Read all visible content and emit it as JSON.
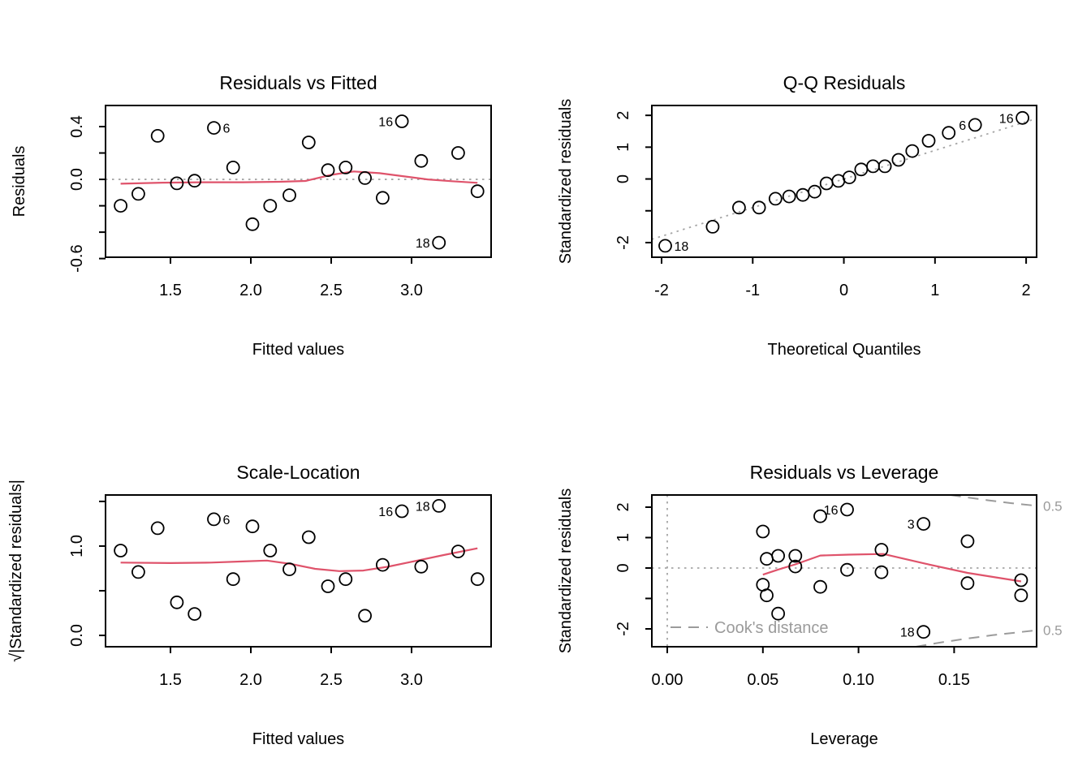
{
  "style": {
    "red_line": "#DF536B",
    "gray_line": "#a6a6a6",
    "gray_dashed": "#9b9b9b",
    "gray_text": "#9b9b9b",
    "point_color": "#000000",
    "background": "#ffffff"
  },
  "observations": {
    "fitted": [
      1.19,
      1.3,
      1.42,
      1.54,
      1.65,
      1.77,
      1.89,
      2.01,
      2.12,
      2.24,
      2.36,
      2.48,
      2.59,
      2.71,
      2.82,
      2.94,
      3.06,
      3.17,
      3.29,
      3.41
    ],
    "residuals": [
      -0.2,
      -0.11,
      0.33,
      -0.03,
      -0.01,
      0.39,
      0.09,
      -0.34,
      -0.2,
      -0.12,
      0.28,
      0.07,
      0.09,
      0.01,
      -0.14,
      0.44,
      0.14,
      -0.48,
      0.2,
      -0.09
    ],
    "std_residuals": [
      -0.9,
      -0.5,
      1.45,
      -0.14,
      -0.06,
      1.7,
      0.4,
      -1.5,
      -0.9,
      -0.55,
      1.2,
      0.3,
      0.4,
      0.05,
      -0.62,
      1.92,
      0.6,
      -2.1,
      0.88,
      -0.4
    ],
    "leverage": [
      0.185,
      0.157,
      0.134,
      0.112,
      0.094,
      0.08,
      0.067,
      0.058,
      0.052,
      0.05,
      0.05,
      0.052,
      0.058,
      0.067,
      0.08,
      0.094,
      0.112,
      0.134,
      0.157,
      0.185
    ]
  },
  "chart_data": [
    {
      "id": "residuals_vs_fitted",
      "type": "scatter",
      "title": "Residuals vs Fitted",
      "xlabel": "Fitted values",
      "ylabel": "Residuals",
      "xlim": [
        1.096,
        3.495
      ],
      "ylim": [
        -0.59,
        0.56
      ],
      "xticks": {
        "values": [
          1.5,
          2.0,
          2.5,
          3.0
        ],
        "labels": [
          "1.5",
          "2.0",
          "2.5",
          "3.0"
        ]
      },
      "yticks": {
        "values": [
          0.4,
          0.2,
          0.0,
          -0.2,
          -0.4,
          -0.6
        ],
        "labels": [
          "0.4",
          null,
          "0.0",
          null,
          null,
          "-0.6"
        ]
      },
      "hline_y": 0,
      "x": [
        1.19,
        1.3,
        1.42,
        1.54,
        1.65,
        1.77,
        1.89,
        2.01,
        2.12,
        2.24,
        2.36,
        2.48,
        2.59,
        2.71,
        2.82,
        2.94,
        3.06,
        3.17,
        3.29,
        3.41
      ],
      "y": [
        -0.2,
        -0.11,
        0.33,
        -0.03,
        -0.01,
        0.39,
        0.09,
        -0.34,
        -0.2,
        -0.12,
        0.28,
        0.07,
        0.09,
        0.01,
        -0.14,
        0.44,
        0.14,
        -0.48,
        0.2,
        -0.09
      ],
      "smooth": [
        [
          1.19,
          -0.033
        ],
        [
          1.45,
          -0.025
        ],
        [
          1.7,
          -0.022
        ],
        [
          1.95,
          -0.022
        ],
        [
          2.18,
          -0.018
        ],
        [
          2.34,
          -0.012
        ],
        [
          2.5,
          0.034
        ],
        [
          2.64,
          0.06
        ],
        [
          2.8,
          0.047
        ],
        [
          2.96,
          0.022
        ],
        [
          3.1,
          0.0
        ],
        [
          3.25,
          -0.014
        ],
        [
          3.41,
          -0.026
        ]
      ],
      "point_labels": [
        {
          "text": "6",
          "x": 1.77,
          "y": 0.39,
          "side": "right"
        },
        {
          "text": "16",
          "x": 2.94,
          "y": 0.44,
          "side": "left"
        },
        {
          "text": "18",
          "x": 3.17,
          "y": -0.48,
          "side": "left"
        }
      ]
    },
    {
      "id": "qq_residuals",
      "type": "scatter",
      "title": "Q-Q Residuals",
      "xlabel": "Theoretical Quantiles",
      "ylabel": "Standardized residuals",
      "xlim": [
        -2.107,
        2.115
      ],
      "ylim": [
        -2.46,
        2.31
      ],
      "xticks": {
        "values": [
          -2,
          -1,
          0,
          1,
          2
        ],
        "labels": [
          "-2",
          "-1",
          "0",
          "1",
          "2"
        ]
      },
      "yticks": {
        "values": [
          2,
          1,
          0,
          -1,
          -2
        ],
        "labels": [
          "2",
          "1",
          "0",
          null,
          "-2"
        ]
      },
      "ref_line": [
        [
          -2.107,
          -1.896
        ],
        [
          2.115,
          1.903
        ]
      ],
      "x": [
        -1.96,
        -1.44,
        -1.15,
        -0.93,
        -0.75,
        -0.6,
        -0.45,
        -0.32,
        -0.19,
        -0.06,
        0.06,
        0.19,
        0.32,
        0.45,
        0.6,
        0.75,
        0.93,
        1.15,
        1.44,
        1.96
      ],
      "y": [
        -2.1,
        -1.5,
        -0.9,
        -0.9,
        -0.62,
        -0.55,
        -0.5,
        -0.4,
        -0.14,
        -0.06,
        0.05,
        0.3,
        0.4,
        0.4,
        0.6,
        0.88,
        1.2,
        1.45,
        1.7,
        1.92
      ],
      "point_labels": [
        {
          "text": "18",
          "x": -1.96,
          "y": -2.1,
          "side": "right"
        },
        {
          "text": "6",
          "x": 1.44,
          "y": 1.7,
          "side": "left"
        },
        {
          "text": "16",
          "x": 1.96,
          "y": 1.92,
          "side": "left"
        }
      ]
    },
    {
      "id": "scale_location",
      "type": "scatter",
      "title": "Scale-Location",
      "xlabel": "Fitted values",
      "ylabel": "√|Standardized residuals|",
      "xlim": [
        1.096,
        3.495
      ],
      "ylim": [
        -0.127,
        1.572
      ],
      "xticks": {
        "values": [
          1.5,
          2.0,
          2.5,
          3.0
        ],
        "labels": [
          "1.5",
          "2.0",
          "2.5",
          "3.0"
        ]
      },
      "yticks": {
        "values": [
          1.5,
          1.0,
          0.5,
          0.0
        ],
        "labels": [
          null,
          "1.0",
          null,
          "0.0"
        ]
      },
      "x": [
        1.19,
        1.3,
        1.42,
        1.54,
        1.65,
        1.77,
        1.89,
        2.01,
        2.12,
        2.24,
        2.36,
        2.48,
        2.59,
        2.71,
        2.82,
        2.94,
        3.06,
        3.17,
        3.29,
        3.41
      ],
      "y": [
        0.95,
        0.71,
        1.2,
        0.37,
        0.24,
        1.3,
        0.63,
        1.22,
        0.95,
        0.74,
        1.1,
        0.55,
        0.63,
        0.22,
        0.79,
        1.39,
        0.77,
        1.45,
        0.94,
        0.63
      ],
      "smooth": [
        [
          1.19,
          0.815
        ],
        [
          1.5,
          0.81
        ],
        [
          1.75,
          0.815
        ],
        [
          1.95,
          0.828
        ],
        [
          2.1,
          0.838
        ],
        [
          2.25,
          0.8
        ],
        [
          2.4,
          0.745
        ],
        [
          2.55,
          0.72
        ],
        [
          2.7,
          0.726
        ],
        [
          2.85,
          0.768
        ],
        [
          3.0,
          0.824
        ],
        [
          3.2,
          0.9
        ],
        [
          3.41,
          0.975
        ]
      ],
      "point_labels": [
        {
          "text": "6",
          "x": 1.77,
          "y": 1.3,
          "side": "right"
        },
        {
          "text": "16",
          "x": 2.94,
          "y": 1.39,
          "side": "left"
        },
        {
          "text": "18",
          "x": 3.17,
          "y": 1.45,
          "side": "left"
        }
      ]
    },
    {
      "id": "residuals_vs_leverage",
      "type": "scatter",
      "title": "Residuals vs Leverage",
      "xlabel": "Leverage",
      "ylabel": "Standardized residuals",
      "xlim": [
        -0.00806,
        0.19312
      ],
      "ylim": [
        -2.587,
        2.4
      ],
      "xticks": {
        "values": [
          0.0,
          0.05,
          0.1,
          0.15
        ],
        "labels": [
          "0.00",
          "0.05",
          "0.10",
          "0.15"
        ]
      },
      "yticks": {
        "values": [
          2,
          1,
          0,
          -1,
          -2
        ],
        "labels": [
          "2",
          "1",
          "0",
          null,
          "-2"
        ]
      },
      "hline_y": 0,
      "vline_x": 0,
      "x": [
        0.185,
        0.157,
        0.134,
        0.112,
        0.094,
        0.08,
        0.067,
        0.058,
        0.052,
        0.05,
        0.05,
        0.052,
        0.058,
        0.067,
        0.08,
        0.094,
        0.112,
        0.134,
        0.157,
        0.185
      ],
      "y": [
        -0.9,
        -0.5,
        1.45,
        -0.14,
        -0.06,
        1.7,
        0.4,
        -1.5,
        -0.9,
        -0.55,
        1.2,
        0.3,
        0.4,
        0.05,
        -0.62,
        1.92,
        0.6,
        -2.1,
        0.88,
        -0.4
      ],
      "smooth": [
        [
          0.05,
          -0.22
        ],
        [
          0.058,
          -0.05
        ],
        [
          0.067,
          0.12
        ],
        [
          0.08,
          0.41
        ],
        [
          0.095,
          0.44
        ],
        [
          0.113,
          0.46
        ],
        [
          0.135,
          0.14
        ],
        [
          0.157,
          -0.16
        ],
        [
          0.185,
          -0.44
        ]
      ],
      "cook_curves": [
        [
          [
            0.148,
            2.4
          ],
          [
            0.158,
            2.31
          ],
          [
            0.168,
            2.225
          ],
          [
            0.18,
            2.13
          ],
          [
            0.193,
            2.045
          ]
        ],
        [
          [
            0.13,
            -2.587
          ],
          [
            0.142,
            -2.457
          ],
          [
            0.155,
            -2.333
          ],
          [
            0.17,
            -2.209
          ],
          [
            0.193,
            -2.045
          ]
        ]
      ],
      "cook_labels": [
        {
          "text": "0.5",
          "y": 2.045
        },
        {
          "text": "0.5",
          "y": -2.045
        }
      ],
      "legend": {
        "text": "Cook's distance"
      },
      "point_labels": [
        {
          "text": "16",
          "x": 0.094,
          "y": 1.92,
          "side": "left"
        },
        {
          "text": "3",
          "x": 0.134,
          "y": 1.45,
          "side": "left"
        },
        {
          "text": "18",
          "x": 0.134,
          "y": -2.1,
          "side": "left"
        }
      ]
    }
  ]
}
